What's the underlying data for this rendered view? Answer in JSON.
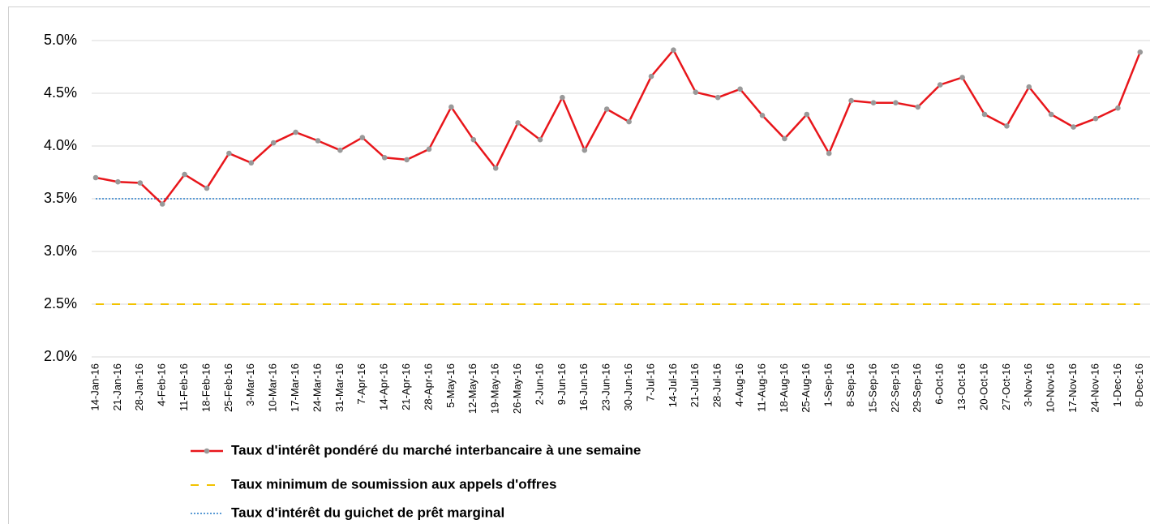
{
  "chart_data": {
    "type": "line",
    "categories": [
      "14-Jan-16",
      "21-Jan-16",
      "28-Jan-16",
      "4-Feb-16",
      "11-Feb-16",
      "18-Feb-16",
      "25-Feb-16",
      "3-Mar-16",
      "10-Mar-16",
      "17-Mar-16",
      "24-Mar-16",
      "31-Mar-16",
      "7-Apr-16",
      "14-Apr-16",
      "21-Apr-16",
      "28-Apr-16",
      "5-May-16",
      "12-May-16",
      "19-May-16",
      "26-May-16",
      "2-Jun-16",
      "9-Jun-16",
      "16-Jun-16",
      "23-Jun-16",
      "30-Jun-16",
      "7-Jul-16",
      "14-Jul-16",
      "21-Jul-16",
      "28-Jul-16",
      "4-Aug-16",
      "11-Aug-16",
      "18-Aug-16",
      "25-Aug-16",
      "1-Sep-16",
      "8-Sep-16",
      "15-Sep-16",
      "22-Sep-16",
      "29-Sep-16",
      "6-Oct-16",
      "13-Oct-16",
      "20-Oct-16",
      "27-Oct-16",
      "3-Nov-16",
      "10-Nov-16",
      "17-Nov-16",
      "24-Nov-16",
      "1-Dec-16",
      "8-Dec-16"
    ],
    "series": [
      {
        "name": "Taux d'intérêt pondéré du marché interbancaire à une semaine",
        "color": "#e8161b",
        "marker_color": "#999999",
        "style": "solid",
        "values": [
          3.7,
          3.66,
          3.65,
          3.45,
          3.73,
          3.6,
          3.93,
          3.84,
          4.03,
          4.13,
          4.05,
          3.96,
          4.08,
          3.89,
          3.87,
          3.97,
          4.37,
          4.06,
          3.79,
          4.22,
          4.06,
          4.46,
          3.96,
          4.35,
          4.23,
          4.66,
          4.91,
          4.51,
          4.46,
          4.54,
          4.29,
          4.07,
          4.3,
          3.93,
          4.43,
          4.41,
          4.41,
          4.37,
          4.58,
          4.65,
          4.3,
          4.19,
          4.56,
          4.3,
          4.18,
          4.26,
          4.36,
          4.89
        ]
      },
      {
        "name": "Taux minimum de soumission aux appels d'offres",
        "color": "#f2c200",
        "style": "dashed",
        "values": [
          2.5,
          2.5,
          2.5,
          2.5,
          2.5,
          2.5,
          2.5,
          2.5,
          2.5,
          2.5,
          2.5,
          2.5,
          2.5,
          2.5,
          2.5,
          2.5,
          2.5,
          2.5,
          2.5,
          2.5,
          2.5,
          2.5,
          2.5,
          2.5,
          2.5,
          2.5,
          2.5,
          2.5,
          2.5,
          2.5,
          2.5,
          2.5,
          2.5,
          2.5,
          2.5,
          2.5,
          2.5,
          2.5,
          2.5,
          2.5,
          2.5,
          2.5,
          2.5,
          2.5,
          2.5,
          2.5,
          2.5,
          2.5
        ]
      },
      {
        "name": "Taux d'intérêt du guichet de prêt marginal",
        "color": "#5b9bd5",
        "style": "dotted",
        "values": [
          3.5,
          3.5,
          3.5,
          3.5,
          3.5,
          3.5,
          3.5,
          3.5,
          3.5,
          3.5,
          3.5,
          3.5,
          3.5,
          3.5,
          3.5,
          3.5,
          3.5,
          3.5,
          3.5,
          3.5,
          3.5,
          3.5,
          3.5,
          3.5,
          3.5,
          3.5,
          3.5,
          3.5,
          3.5,
          3.5,
          3.5,
          3.5,
          3.5,
          3.5,
          3.5,
          3.5,
          3.5,
          3.5,
          3.5,
          3.5,
          3.5,
          3.5,
          3.5,
          3.5,
          3.5,
          3.5,
          3.5,
          3.5
        ]
      }
    ],
    "ylim": [
      2,
      5.3
    ],
    "yticks": [
      {
        "value": 2,
        "label": "2.0%"
      },
      {
        "value": 2.5,
        "label": "2.5%"
      },
      {
        "value": 3,
        "label": "3.0%"
      },
      {
        "value": 3.5,
        "label": "3.5%"
      },
      {
        "value": 4,
        "label": "4.0%"
      },
      {
        "value": 4.5,
        "label": "4.5%"
      },
      {
        "value": 5,
        "label": "5.0%"
      }
    ],
    "grid": true,
    "legend": "bottom"
  }
}
